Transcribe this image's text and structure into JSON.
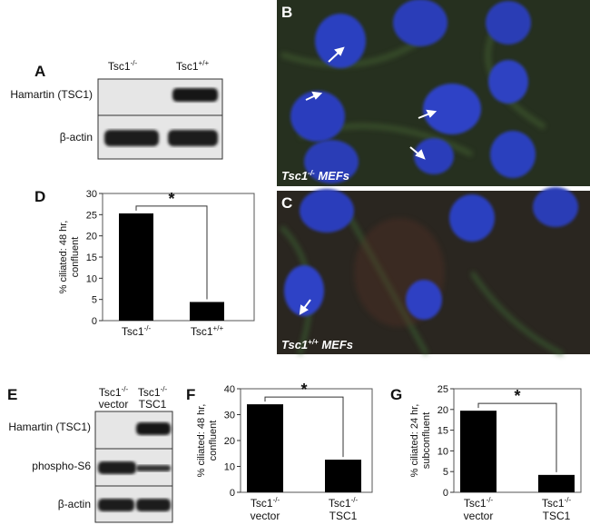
{
  "panel_a": {
    "label": "A",
    "columns": [
      {
        "name": "Tsc1",
        "sup": "-/-"
      },
      {
        "name": "Tsc1",
        "sup": "+/+"
      }
    ],
    "rows": [
      "Hamartin (TSC1)",
      "β-actin"
    ]
  },
  "panel_b": {
    "label": "B",
    "caption": {
      "name": "Tsc1",
      "sup": "-/-",
      "rest": " MEFs"
    }
  },
  "panel_c": {
    "label": "C",
    "caption": {
      "name": "Tsc1",
      "sup": "+/+",
      "rest": " MEFs"
    }
  },
  "panel_e": {
    "label": "E",
    "columns": [
      {
        "name": "Tsc1",
        "sup": "-/-",
        "sub": "vector"
      },
      {
        "name": "Tsc1",
        "sup": "-/-",
        "sub": "TSC1"
      }
    ],
    "rows": [
      "Hamartin (TSC1)",
      "phospho-S6",
      "β-actin"
    ]
  },
  "chart_data": [
    {
      "type": "bar",
      "panel_label": "D",
      "y_label": [
        "% ciliated: 48 hr,",
        "confluent"
      ],
      "categories": [
        {
          "name": "Tsc1",
          "sup": "-/-"
        },
        {
          "name": "Tsc1",
          "sup": "+/+"
        }
      ],
      "values": [
        25.3,
        4.4
      ],
      "color": "#000000",
      "ylim": [
        0,
        30
      ],
      "yticks": [
        0,
        5,
        10,
        15,
        20,
        25,
        30
      ],
      "annotation": "*"
    },
    {
      "type": "bar",
      "panel_label": "F",
      "y_label": [
        "% ciliated: 48 hr,",
        "confluent"
      ],
      "categories": [
        {
          "name": "Tsc1",
          "sup": "-/-",
          "sub": "vector"
        },
        {
          "name": "Tsc1",
          "sup": "-/-",
          "sub": "TSC1"
        }
      ],
      "values": [
        34,
        12.6
      ],
      "color": "#000000",
      "ylim": [
        0,
        40
      ],
      "yticks": [
        0,
        10,
        20,
        30,
        40
      ],
      "annotation": "*"
    },
    {
      "type": "bar",
      "panel_label": "G",
      "y_label": [
        "% ciliated: 24 hr,",
        "subconfluent"
      ],
      "categories": [
        {
          "name": "Tsc1",
          "sup": "-/-",
          "sub": "vector"
        },
        {
          "name": "Tsc1",
          "sup": "-/-",
          "sub": "TSC1"
        }
      ],
      "values": [
        19.7,
        4.2
      ],
      "color": "#000000",
      "ylim": [
        0,
        25
      ],
      "yticks": [
        0,
        5,
        10,
        15,
        20,
        25
      ],
      "annotation": "*"
    }
  ]
}
